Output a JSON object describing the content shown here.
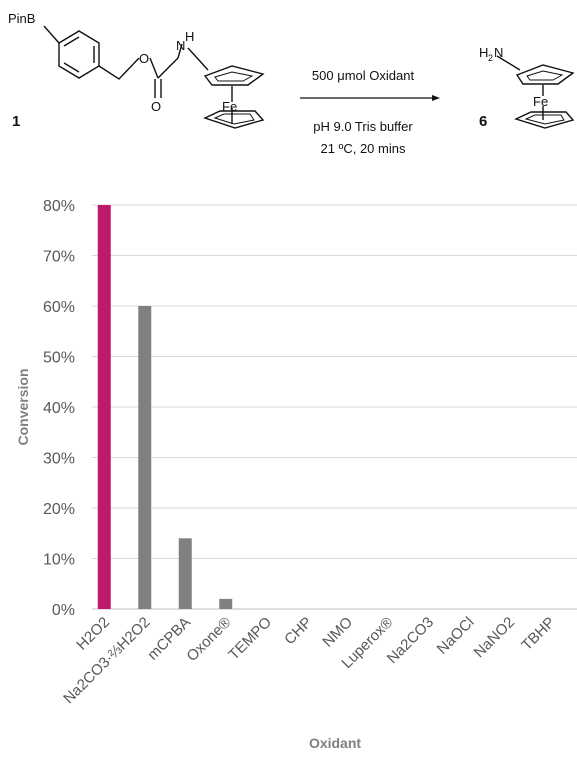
{
  "scheme": {
    "reactant_number": "1",
    "product_number": "6",
    "reactant_labels": {
      "pinb": "PinB",
      "ester_o": "O",
      "carbonyl_o": "O",
      "nh": "N",
      "nh_h": "H",
      "fe": "Fe"
    },
    "product_labels": {
      "amine": "H",
      "amine_sub": "2",
      "amine_n": "N",
      "fe": "Fe"
    },
    "arrow_top": "500 μmol Oxidant",
    "arrow_bottom_1": "pH 9.0 Tris buffer",
    "arrow_bottom_2": "21 ºC, 20 mins"
  },
  "chart_data": {
    "type": "bar",
    "xlabel": "Oxidant",
    "ylabel": "Conversion",
    "ylim": [
      0,
      0.8
    ],
    "yticks": [
      "0%",
      "10%",
      "20%",
      "30%",
      "40%",
      "50%",
      "60%",
      "70%",
      "80%"
    ],
    "categories": [
      "H2O2",
      "Na2CO3·⅔H2O2",
      "mCPBA",
      "Oxone®",
      "TEMPO",
      "CHP",
      "NMO",
      "Luperox®",
      "Na2CO3",
      "NaOCl",
      "NaNO2",
      "TBHP"
    ],
    "values": [
      0.8,
      0.6,
      0.14,
      0.02,
      0,
      0,
      0,
      0,
      0,
      0,
      0,
      0
    ],
    "colors": [
      "#c0186b",
      "#808080",
      "#808080",
      "#808080",
      "#808080",
      "#808080",
      "#808080",
      "#808080",
      "#808080",
      "#808080",
      "#808080",
      "#808080"
    ],
    "grid": true
  }
}
